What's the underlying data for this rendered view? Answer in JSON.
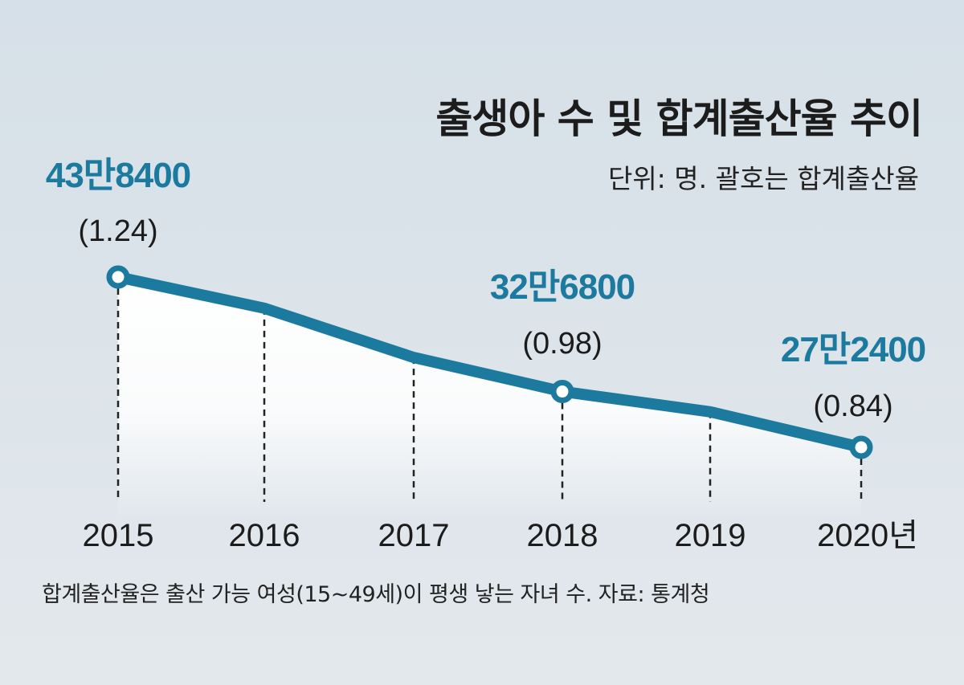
{
  "chart_data": {
    "type": "line",
    "title": "출생아 수 및 합계출산율 추이",
    "subtitle": "단위: 명. 괄호는 합계출산율",
    "categories": [
      "2015",
      "2016",
      "2017",
      "2018",
      "2019",
      "2020년"
    ],
    "values": [
      438400,
      408000,
      360000,
      326800,
      307000,
      272400
    ],
    "data_labels": [
      {
        "index": 0,
        "value_label": "43만8400",
        "rate_label": "(1.24)"
      },
      {
        "index": 3,
        "value_label": "32만6800",
        "rate_label": "(0.98)"
      },
      {
        "index": 5,
        "value_label": "27만2400",
        "rate_label": "(0.84)"
      }
    ],
    "marked_points": [
      0,
      3,
      5
    ],
    "grid": false,
    "note": "합계출산율은 출산 가능 여성(15~49세)이 평생 낳는 자녀 수. 자료: 통계청",
    "colors": {
      "line": "#1b7a9e",
      "label": "#1b7a9e",
      "background": "#dbe3ea"
    }
  }
}
